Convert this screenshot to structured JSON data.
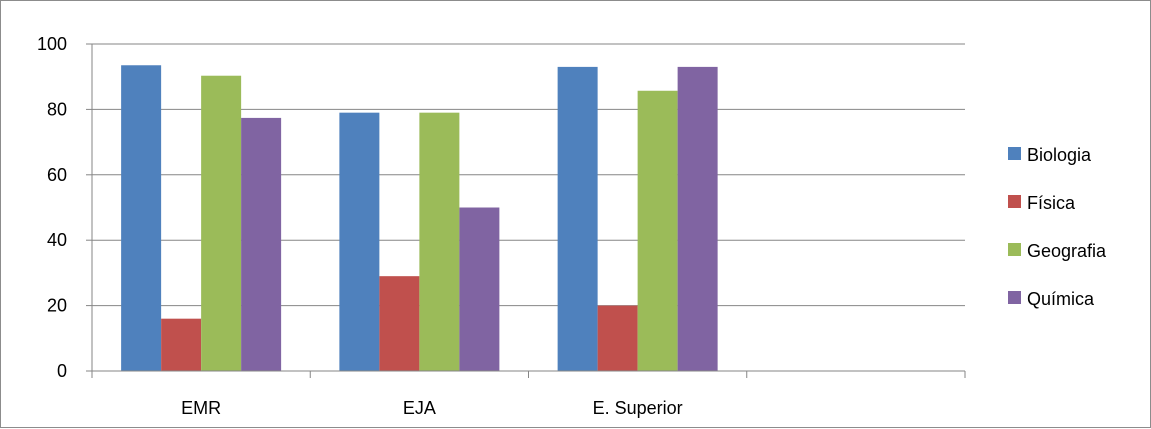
{
  "chart_data": {
    "type": "bar",
    "title": "",
    "xlabel": "",
    "ylabel": "",
    "categories": [
      "EMR",
      "EJA",
      "E. Superior",
      ""
    ],
    "series": [
      {
        "name": "Biologia",
        "color": "#4f81bd",
        "values": [
          93.5,
          79,
          93,
          null
        ]
      },
      {
        "name": "Física",
        "color": "#c0504d",
        "values": [
          16,
          29,
          20,
          null
        ]
      },
      {
        "name": "Geografia",
        "color": "#9bbb59",
        "values": [
          90.3,
          79,
          85.7,
          null
        ]
      },
      {
        "name": "Química",
        "color": "#8064a2",
        "values": [
          77.4,
          50,
          93,
          null
        ]
      }
    ],
    "ylim": [
      0,
      100
    ],
    "yticks": [
      "0",
      "20",
      "40",
      "60",
      "80",
      "100"
    ],
    "grid": true,
    "legend_position": "right"
  }
}
